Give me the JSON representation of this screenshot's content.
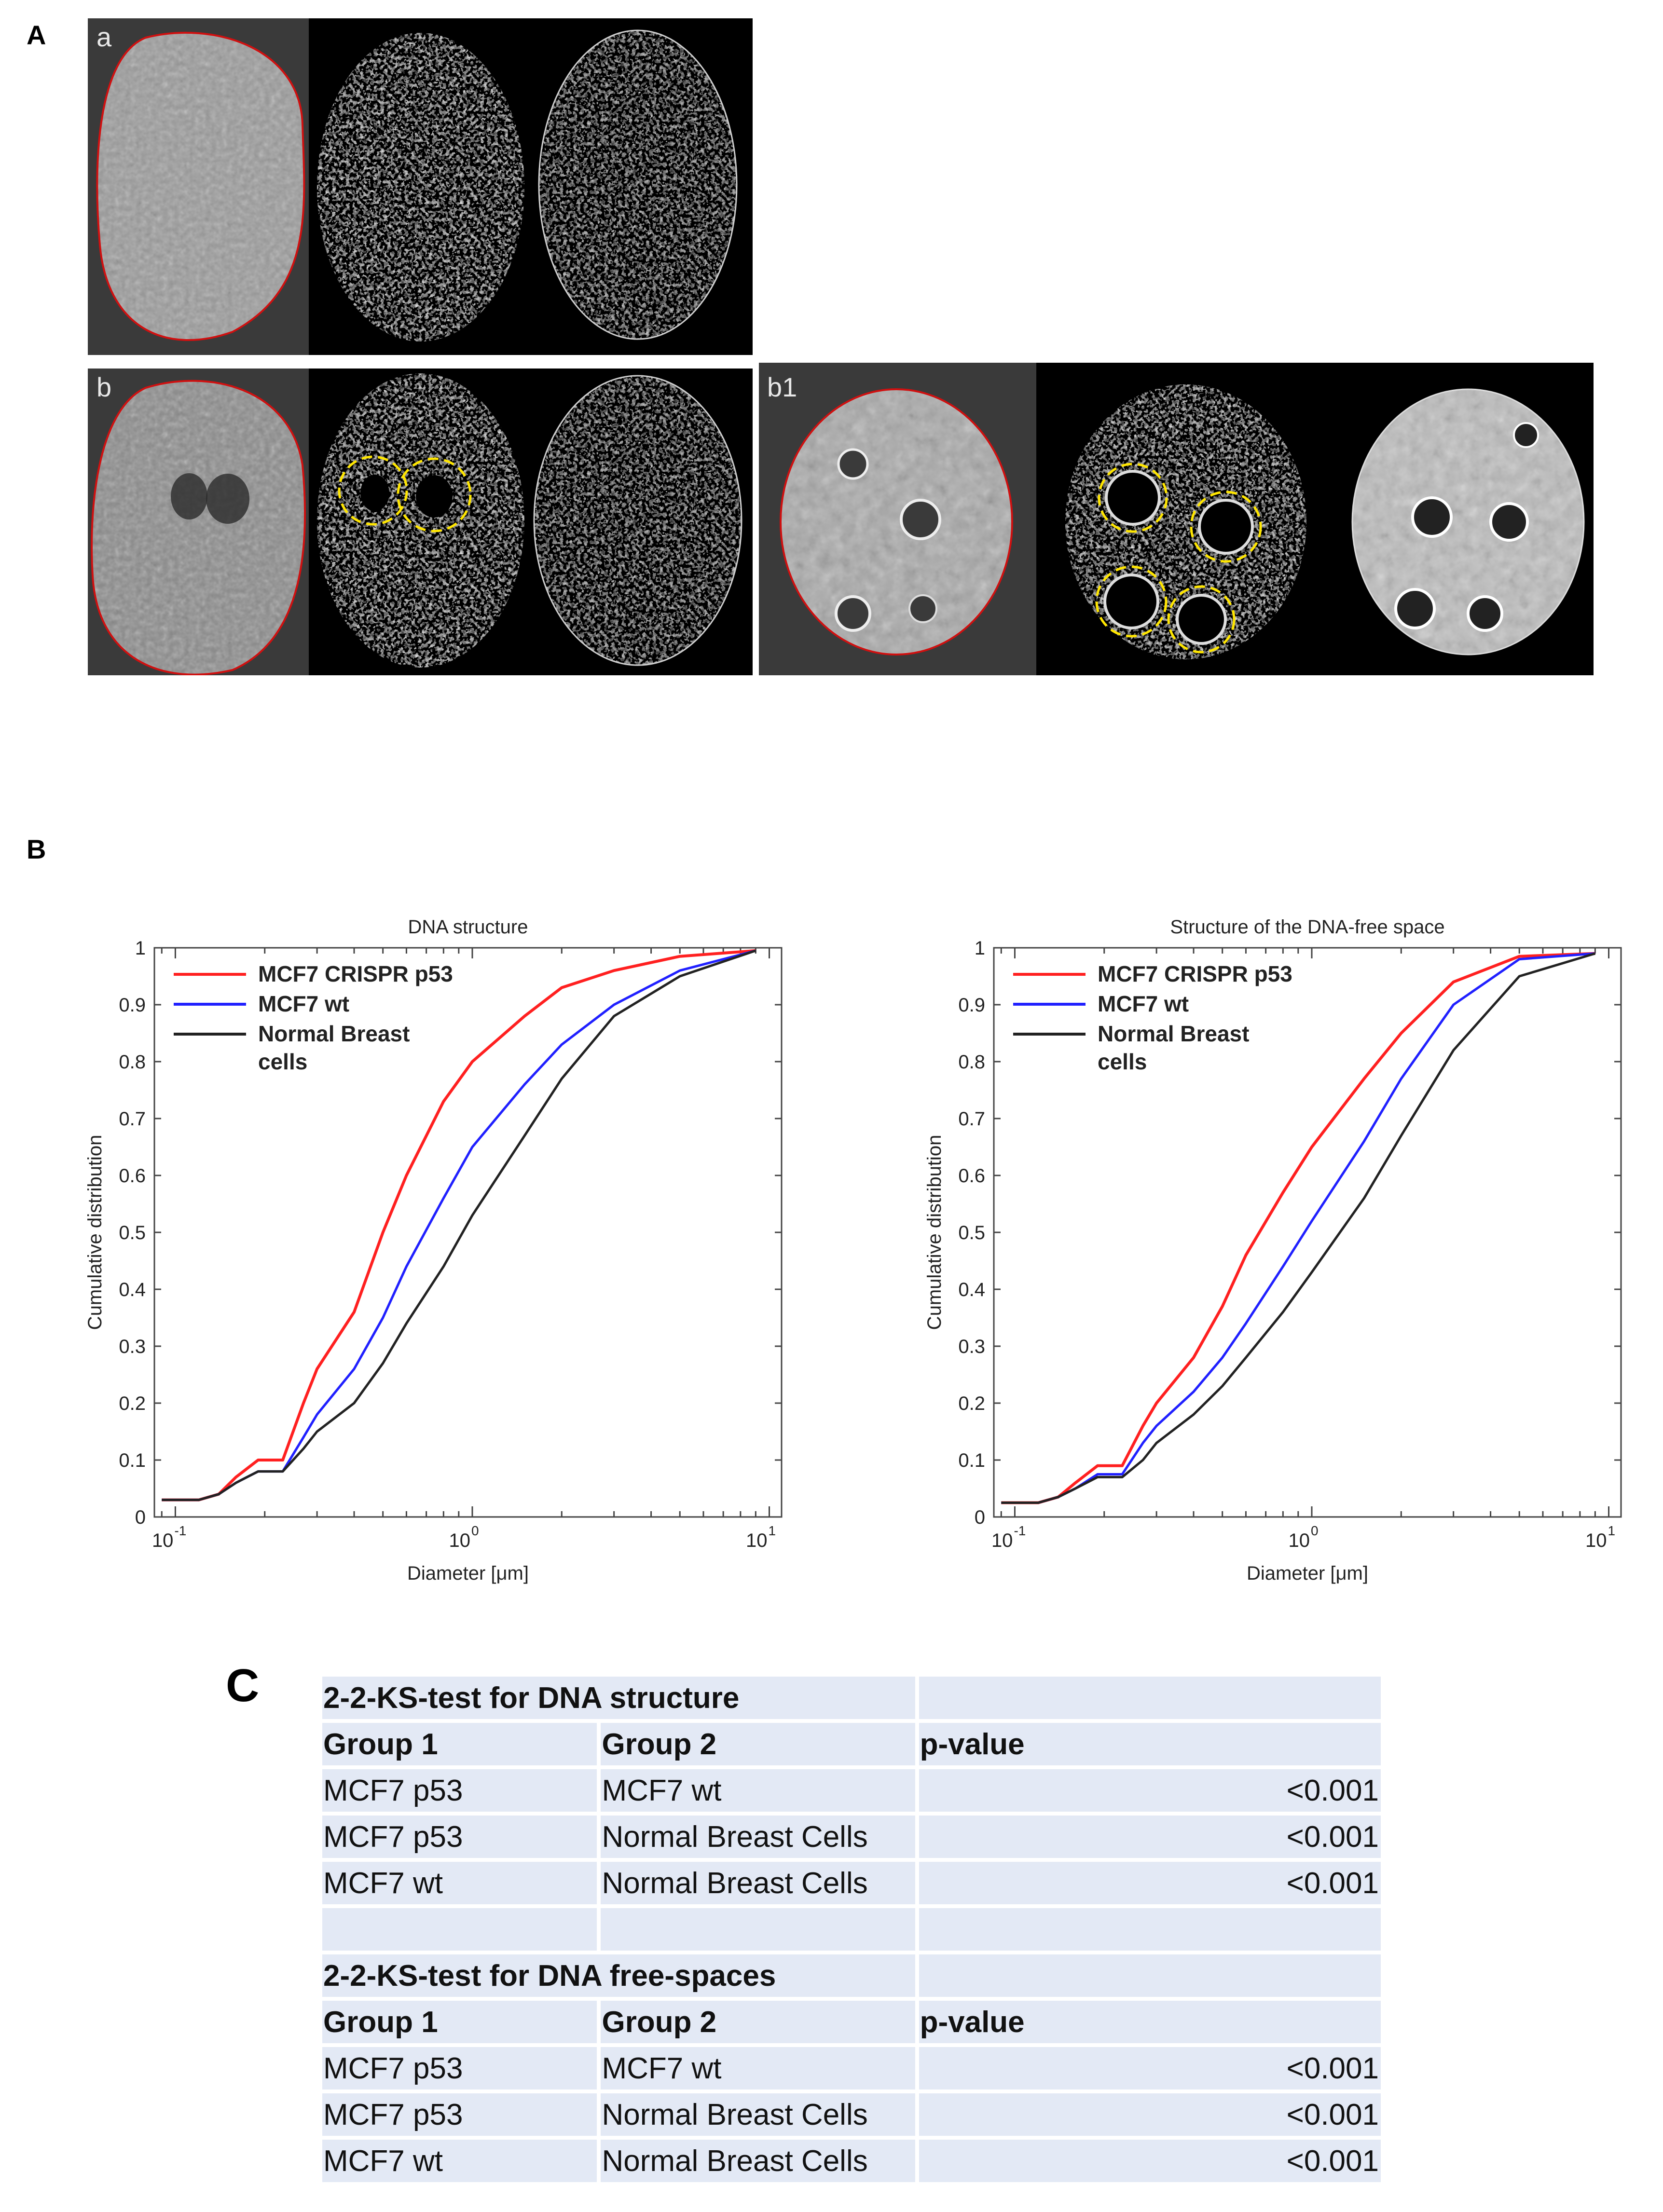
{
  "panel_labels": {
    "a": "A",
    "b": "B",
    "c": "C"
  },
  "image_tags": {
    "row1": "a",
    "row2_left": "b",
    "row2_right": "b1"
  },
  "colors": {
    "series_red": "#ff2020",
    "series_blue": "#2020ff",
    "series_black": "#222222",
    "highlight_circle": "#ffe600",
    "nucleus_outline": "#d01010",
    "table_cell": "#e3e9f5"
  },
  "chart_data": [
    {
      "type": "line",
      "title": "DNA structure",
      "xlabel": "Diameter [μm]",
      "ylabel": "Cumulative distribution",
      "x_scale": "log",
      "xlim": [
        0.085,
        11
      ],
      "ylim": [
        0,
        1
      ],
      "yticks": [
        "0",
        "0.1",
        "0.2",
        "0.3",
        "0.4",
        "0.5",
        "0.6",
        "0.7",
        "0.8",
        "0.9",
        "1"
      ],
      "xticks": [
        {
          "base": "10",
          "exp": "-1"
        },
        {
          "base": "10",
          "exp": "0"
        },
        {
          "base": "10",
          "exp": "1"
        }
      ],
      "legend_position": "top-left",
      "series": [
        {
          "name": "MCF7 CRISPR p53",
          "color": "#ff2020",
          "x": [
            0.09,
            0.12,
            0.14,
            0.16,
            0.19,
            0.23,
            0.27,
            0.3,
            0.4,
            0.5,
            0.6,
            0.8,
            1.0,
            1.5,
            2,
            3,
            5,
            9
          ],
          "y": [
            0.03,
            0.03,
            0.04,
            0.07,
            0.1,
            0.1,
            0.2,
            0.26,
            0.36,
            0.5,
            0.6,
            0.73,
            0.8,
            0.88,
            0.93,
            0.96,
            0.985,
            0.995
          ]
        },
        {
          "name": "MCF7 wt",
          "color": "#2020ff",
          "x": [
            0.09,
            0.12,
            0.14,
            0.16,
            0.19,
            0.23,
            0.27,
            0.3,
            0.4,
            0.5,
            0.6,
            0.8,
            1.0,
            1.5,
            2,
            3,
            5,
            9
          ],
          "y": [
            0.03,
            0.03,
            0.04,
            0.06,
            0.08,
            0.08,
            0.14,
            0.18,
            0.26,
            0.35,
            0.44,
            0.56,
            0.65,
            0.76,
            0.83,
            0.9,
            0.96,
            0.995
          ]
        },
        {
          "name": "Normal Breast cells",
          "color": "#222222",
          "x": [
            0.09,
            0.12,
            0.14,
            0.16,
            0.19,
            0.23,
            0.27,
            0.3,
            0.4,
            0.5,
            0.6,
            0.8,
            1.0,
            1.5,
            2,
            3,
            5,
            9
          ],
          "y": [
            0.03,
            0.03,
            0.04,
            0.06,
            0.08,
            0.08,
            0.12,
            0.15,
            0.2,
            0.27,
            0.34,
            0.44,
            0.53,
            0.67,
            0.77,
            0.88,
            0.95,
            0.995
          ]
        }
      ]
    },
    {
      "type": "line",
      "title": "Structure of the DNA-free space",
      "xlabel": "Diameter [μm]",
      "ylabel": "Cumulative distribution",
      "x_scale": "log",
      "xlim": [
        0.085,
        11
      ],
      "ylim": [
        0,
        1
      ],
      "yticks": [
        "0",
        "0.1",
        "0.2",
        "0.3",
        "0.4",
        "0.5",
        "0.6",
        "0.7",
        "0.8",
        "0.9",
        "1"
      ],
      "xticks": [
        {
          "base": "10",
          "exp": "-1"
        },
        {
          "base": "10",
          "exp": "0"
        },
        {
          "base": "10",
          "exp": "1"
        }
      ],
      "legend_position": "top-left",
      "series": [
        {
          "name": "MCF7 CRISPR p53",
          "color": "#ff2020",
          "x": [
            0.09,
            0.12,
            0.14,
            0.16,
            0.19,
            0.23,
            0.27,
            0.3,
            0.4,
            0.5,
            0.6,
            0.8,
            1.0,
            1.5,
            2,
            3,
            5,
            9
          ],
          "y": [
            0.025,
            0.025,
            0.035,
            0.06,
            0.09,
            0.09,
            0.16,
            0.2,
            0.28,
            0.37,
            0.46,
            0.57,
            0.65,
            0.77,
            0.85,
            0.94,
            0.985,
            0.99
          ]
        },
        {
          "name": "MCF7 wt",
          "color": "#2020ff",
          "x": [
            0.09,
            0.12,
            0.14,
            0.16,
            0.19,
            0.23,
            0.27,
            0.3,
            0.4,
            0.5,
            0.6,
            0.8,
            1.0,
            1.5,
            2,
            3,
            5,
            9
          ],
          "y": [
            0.025,
            0.025,
            0.035,
            0.05,
            0.075,
            0.075,
            0.13,
            0.16,
            0.22,
            0.28,
            0.34,
            0.44,
            0.52,
            0.66,
            0.77,
            0.9,
            0.98,
            0.99
          ]
        },
        {
          "name": "Normal Breast cells",
          "color": "#222222",
          "x": [
            0.09,
            0.12,
            0.14,
            0.16,
            0.19,
            0.23,
            0.27,
            0.3,
            0.4,
            0.5,
            0.6,
            0.8,
            1.0,
            1.5,
            2,
            3,
            5,
            9
          ],
          "y": [
            0.025,
            0.025,
            0.035,
            0.05,
            0.07,
            0.07,
            0.1,
            0.13,
            0.18,
            0.23,
            0.28,
            0.36,
            0.43,
            0.56,
            0.67,
            0.82,
            0.95,
            0.99
          ]
        }
      ]
    }
  ],
  "legend_entries": [
    {
      "line1": "MCF7 CRISPR p53",
      "line2": "",
      "color": "#ff2020"
    },
    {
      "line1": "MCF7 wt",
      "line2": "",
      "color": "#2020ff"
    },
    {
      "line1": "Normal Breast",
      "line2": "cells",
      "color": "#222222"
    }
  ],
  "ks_table": {
    "section1_title": "2-2-KS-test for DNA structure",
    "section2_title": "2-2-KS-test for DNA free-spaces",
    "headers": [
      "Group 1",
      "Group 2",
      "p-value"
    ],
    "section1_rows": [
      [
        "MCF7 p53",
        "MCF7 wt",
        "<0.001"
      ],
      [
        "MCF7 p53",
        "Normal Breast Cells",
        "<0.001"
      ],
      [
        "MCF7 wt",
        "Normal Breast Cells",
        "<0.001"
      ]
    ],
    "section2_rows": [
      [
        "MCF7 p53",
        "MCF7 wt",
        "<0.001"
      ],
      [
        "MCF7 p53",
        "Normal Breast Cells",
        "<0.001"
      ],
      [
        "MCF7 wt",
        "Normal Breast Cells",
        "<0.001"
      ]
    ]
  }
}
